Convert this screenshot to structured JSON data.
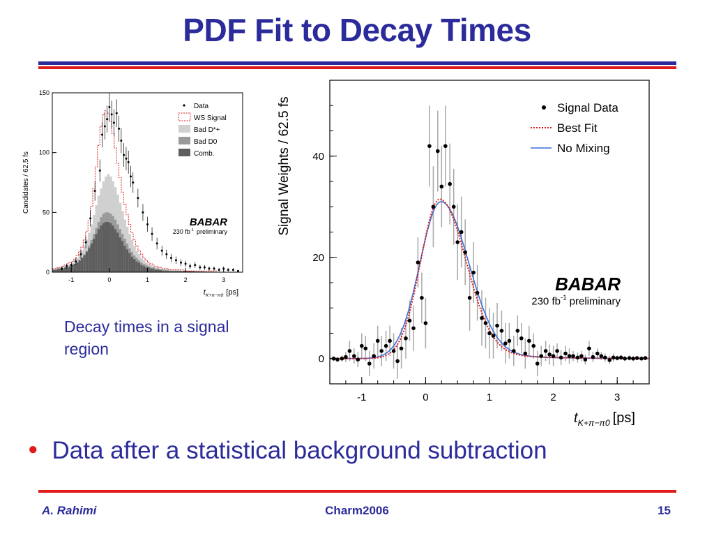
{
  "slide": {
    "title": "PDF Fit to Decay Times",
    "caption": "Decay times in a signal region",
    "bullet": "Data after a statistical background subtraction",
    "footer": {
      "author": "A. Rahimi",
      "event": "Charm2006",
      "page": "15"
    },
    "colors": {
      "title": "#2b2b9b",
      "accent_red": "#e01b1b",
      "accent_blue": "#2b2b9b"
    }
  },
  "chart_data": [
    {
      "type": "bar",
      "ylabel": "Candidates / 62.5 fs",
      "xlabel": "t",
      "xlabel_sub": "K+π−π0",
      "xlabel_unit": "[ps]",
      "xlim": [
        -1.5,
        3.5
      ],
      "ylim": [
        0,
        150
      ],
      "xticks": [
        -1,
        0,
        1,
        2,
        3
      ],
      "yticks": [
        0,
        50,
        100,
        150
      ],
      "logo": "BABAR",
      "lumi": "230 fb",
      "lumi_sup": "-1",
      "status": "preliminary",
      "legend": [
        {
          "label": "Data",
          "marker": "point"
        },
        {
          "label": "WS Signal",
          "marker": "dashed-box",
          "color": "#e01b1b"
        },
        {
          "label": "Bad D*+",
          "marker": "fill",
          "color": "#d0d0d0"
        },
        {
          "label": "Bad D0",
          "marker": "fill",
          "color": "#9a9a9a"
        },
        {
          "label": "Comb.",
          "marker": "fill",
          "color": "#5e5e5e"
        }
      ],
      "bin_width": 0.0625,
      "x_start": -1.5,
      "comb": [
        2,
        2,
        3,
        3,
        3,
        4,
        4,
        5,
        6,
        7,
        8,
        10,
        12,
        14,
        17,
        20,
        24,
        28,
        32,
        36,
        39,
        41,
        42,
        42,
        41,
        39,
        36,
        33,
        29,
        26,
        22,
        19,
        16,
        13,
        11,
        9,
        8,
        6,
        5,
        4,
        4,
        3,
        3,
        2,
        2,
        2,
        1,
        1,
        1,
        1,
        1,
        1,
        1,
        1,
        1,
        1,
        1,
        1,
        1,
        1,
        0,
        0,
        0,
        0,
        0,
        0,
        0,
        0,
        0,
        0,
        0,
        0,
        0,
        0,
        0,
        0,
        0,
        0,
        0,
        0
      ],
      "bad_d0": [
        2,
        2,
        3,
        3,
        3,
        4,
        4,
        5,
        6,
        7,
        8,
        10,
        12,
        15,
        18,
        22,
        27,
        32,
        37,
        42,
        46,
        49,
        50,
        50,
        49,
        47,
        44,
        40,
        36,
        32,
        28,
        24,
        20,
        17,
        14,
        12,
        10,
        8,
        7,
        6,
        5,
        4,
        4,
        3,
        3,
        2,
        2,
        2,
        2,
        1,
        1,
        1,
        1,
        1,
        1,
        1,
        1,
        1,
        1,
        1,
        1,
        1,
        1,
        1,
        0,
        0,
        0,
        0,
        0,
        0,
        0,
        0,
        0,
        0,
        0,
        0,
        0,
        0,
        0,
        0
      ],
      "bad_dstar": [
        3,
        3,
        4,
        4,
        5,
        5,
        6,
        7,
        8,
        10,
        12,
        15,
        18,
        22,
        27,
        33,
        40,
        48,
        56,
        64,
        70,
        76,
        80,
        82,
        80,
        76,
        71,
        65,
        58,
        51,
        44,
        38,
        32,
        27,
        22,
        18,
        15,
        12,
        10,
        8,
        7,
        6,
        5,
        4,
        4,
        3,
        3,
        3,
        2,
        2,
        2,
        2,
        2,
        2,
        1,
        1,
        1,
        1,
        1,
        1,
        1,
        1,
        1,
        1,
        1,
        1,
        1,
        1,
        0,
        0,
        0,
        0,
        0,
        0,
        0,
        0,
        0,
        0,
        0,
        0
      ],
      "ws_signal": [
        3,
        3,
        4,
        4,
        5,
        6,
        7,
        8,
        9,
        11,
        14,
        17,
        21,
        27,
        34,
        43,
        55,
        70,
        88,
        106,
        122,
        132,
        135,
        133,
        126,
        116,
        104,
        91,
        79,
        67,
        57,
        48,
        40,
        33,
        27,
        22,
        18,
        15,
        12,
        10,
        8,
        7,
        6,
        5,
        4,
        4,
        3,
        3,
        3,
        2,
        2,
        2,
        2,
        2,
        2,
        1,
        1,
        1,
        1,
        1,
        1,
        1,
        1,
        1,
        1,
        1,
        1,
        1,
        1,
        0,
        0,
        0,
        0,
        0,
        0,
        0,
        0,
        0,
        0,
        0
      ],
      "data_points": [
        {
          "x": -1.25,
          "y": 3
        },
        {
          "x": -1.12,
          "y": 5
        },
        {
          "x": -1.0,
          "y": 6
        },
        {
          "x": -0.88,
          "y": 9
        },
        {
          "x": -0.75,
          "y": 15
        },
        {
          "x": -0.62,
          "y": 25
        },
        {
          "x": -0.5,
          "y": 45
        },
        {
          "x": -0.38,
          "y": 68
        },
        {
          "x": -0.25,
          "y": 85
        },
        {
          "x": -0.19,
          "y": 115
        },
        {
          "x": -0.12,
          "y": 122
        },
        {
          "x": -0.06,
          "y": 128
        },
        {
          "x": 0.0,
          "y": 138
        },
        {
          "x": 0.06,
          "y": 132
        },
        {
          "x": 0.12,
          "y": 125
        },
        {
          "x": 0.19,
          "y": 133
        },
        {
          "x": 0.25,
          "y": 120
        },
        {
          "x": 0.31,
          "y": 110
        },
        {
          "x": 0.38,
          "y": 98
        },
        {
          "x": 0.44,
          "y": 95
        },
        {
          "x": 0.5,
          "y": 92
        },
        {
          "x": 0.56,
          "y": 80
        },
        {
          "x": 0.62,
          "y": 75
        },
        {
          "x": 0.75,
          "y": 62
        },
        {
          "x": 0.88,
          "y": 50
        },
        {
          "x": 1.0,
          "y": 40
        },
        {
          "x": 1.12,
          "y": 32
        },
        {
          "x": 1.25,
          "y": 24
        },
        {
          "x": 1.38,
          "y": 18
        },
        {
          "x": 1.5,
          "y": 15
        },
        {
          "x": 1.62,
          "y": 12
        },
        {
          "x": 1.75,
          "y": 10
        },
        {
          "x": 1.88,
          "y": 8
        },
        {
          "x": 2.0,
          "y": 7
        },
        {
          "x": 2.12,
          "y": 5
        },
        {
          "x": 2.25,
          "y": 6
        },
        {
          "x": 2.38,
          "y": 4
        },
        {
          "x": 2.5,
          "y": 4
        },
        {
          "x": 2.62,
          "y": 3
        },
        {
          "x": 2.75,
          "y": 3
        },
        {
          "x": 2.88,
          "y": 2
        },
        {
          "x": 3.0,
          "y": 3
        },
        {
          "x": 3.12,
          "y": 2
        },
        {
          "x": 3.25,
          "y": 2
        },
        {
          "x": 3.38,
          "y": 1
        }
      ]
    },
    {
      "type": "scatter",
      "ylabel": "Signal Weights / 62.5 fs",
      "xlabel": "t",
      "xlabel_sub": "K+π−π0",
      "xlabel_unit": "[ps]",
      "xlim": [
        -1.5,
        3.5
      ],
      "ylim": [
        -5,
        55
      ],
      "xticks": [
        -1,
        0,
        1,
        2,
        3
      ],
      "yticks": [
        0,
        20,
        40
      ],
      "logo": "BABAR",
      "lumi": "230 fb",
      "lumi_sup": "-1",
      "status": "preliminary",
      "legend": [
        {
          "label": "Signal Data",
          "marker": "point",
          "color": "#000000"
        },
        {
          "label": "Best Fit",
          "marker": "dotted-line",
          "color": "#e01b1b"
        },
        {
          "label": "No Mixing",
          "marker": "line",
          "color": "#3a6fd8"
        }
      ],
      "data_points": [
        {
          "x": -1.44,
          "y": 0,
          "e": 0.5
        },
        {
          "x": -1.38,
          "y": -0.2,
          "e": 0.5
        },
        {
          "x": -1.31,
          "y": 0,
          "e": 0.6
        },
        {
          "x": -1.25,
          "y": 0.3,
          "e": 1.0
        },
        {
          "x": -1.19,
          "y": 1.5,
          "e": 2.0
        },
        {
          "x": -1.12,
          "y": 0.5,
          "e": 1.5
        },
        {
          "x": -1.06,
          "y": -0.2,
          "e": 1.5
        },
        {
          "x": -1.0,
          "y": 2.5,
          "e": 2.5
        },
        {
          "x": -0.94,
          "y": 2.0,
          "e": 2.5
        },
        {
          "x": -0.88,
          "y": -1.0,
          "e": 2.5
        },
        {
          "x": -0.81,
          "y": 0.5,
          "e": 2.5
        },
        {
          "x": -0.75,
          "y": 3.5,
          "e": 3.0
        },
        {
          "x": -0.69,
          "y": 1.5,
          "e": 3.0
        },
        {
          "x": -0.62,
          "y": 2.5,
          "e": 3.0
        },
        {
          "x": -0.56,
          "y": 3.5,
          "e": 3.0
        },
        {
          "x": -0.5,
          "y": 1.5,
          "e": 3.5
        },
        {
          "x": -0.44,
          "y": -0.5,
          "e": 3.5
        },
        {
          "x": -0.38,
          "y": 2.0,
          "e": 4.0
        },
        {
          "x": -0.31,
          "y": 4.0,
          "e": 4.0
        },
        {
          "x": -0.25,
          "y": 7.5,
          "e": 4.0
        },
        {
          "x": -0.19,
          "y": 6.0,
          "e": 4.5
        },
        {
          "x": -0.12,
          "y": 19.0,
          "e": 5.0
        },
        {
          "x": -0.06,
          "y": 12.0,
          "e": 5.0
        },
        {
          "x": 0.0,
          "y": 7.0,
          "e": 5.0
        },
        {
          "x": 0.06,
          "y": 42.0,
          "e": 8.0
        },
        {
          "x": 0.12,
          "y": 30.0,
          "e": 8.0
        },
        {
          "x": 0.19,
          "y": 41.0,
          "e": 8.0
        },
        {
          "x": 0.25,
          "y": 34.0,
          "e": 8.0
        },
        {
          "x": 0.31,
          "y": 42.0,
          "e": 8.0
        },
        {
          "x": 0.38,
          "y": 34.5,
          "e": 8.0
        },
        {
          "x": 0.44,
          "y": 30.0,
          "e": 7.5
        },
        {
          "x": 0.5,
          "y": 23.0,
          "e": 7.5
        },
        {
          "x": 0.56,
          "y": 25.0,
          "e": 7.0
        },
        {
          "x": 0.62,
          "y": 21.0,
          "e": 6.5
        },
        {
          "x": 0.69,
          "y": 12.0,
          "e": 6.5
        },
        {
          "x": 0.75,
          "y": 17.0,
          "e": 6.0
        },
        {
          "x": 0.81,
          "y": 13.0,
          "e": 5.5
        },
        {
          "x": 0.88,
          "y": 8.0,
          "e": 5.5
        },
        {
          "x": 0.94,
          "y": 7.0,
          "e": 5.0
        },
        {
          "x": 1.0,
          "y": 5.0,
          "e": 5.0
        },
        {
          "x": 1.06,
          "y": 4.5,
          "e": 4.5
        },
        {
          "x": 1.12,
          "y": 6.5,
          "e": 4.5
        },
        {
          "x": 1.19,
          "y": 5.5,
          "e": 4.0
        },
        {
          "x": 1.25,
          "y": 3.0,
          "e": 4.0
        },
        {
          "x": 1.31,
          "y": 3.5,
          "e": 3.5
        },
        {
          "x": 1.38,
          "y": 1.5,
          "e": 3.0
        },
        {
          "x": 1.44,
          "y": 5.5,
          "e": 3.0
        },
        {
          "x": 1.5,
          "y": 4.0,
          "e": 3.0
        },
        {
          "x": 1.56,
          "y": 1.0,
          "e": 3.0
        },
        {
          "x": 1.62,
          "y": 3.5,
          "e": 3.0
        },
        {
          "x": 1.69,
          "y": 2.5,
          "e": 2.5
        },
        {
          "x": 1.75,
          "y": -1.0,
          "e": 2.5
        },
        {
          "x": 1.81,
          "y": 0.5,
          "e": 2.0
        },
        {
          "x": 1.88,
          "y": 1.5,
          "e": 2.0
        },
        {
          "x": 1.94,
          "y": 0.8,
          "e": 2.0
        },
        {
          "x": 2.0,
          "y": 0.5,
          "e": 2.0
        },
        {
          "x": 2.06,
          "y": 1.5,
          "e": 1.5
        },
        {
          "x": 2.12,
          "y": 0.2,
          "e": 1.5
        },
        {
          "x": 2.19,
          "y": 1.0,
          "e": 1.5
        },
        {
          "x": 2.25,
          "y": 0.5,
          "e": 1.5
        },
        {
          "x": 2.31,
          "y": 0.5,
          "e": 1.0
        },
        {
          "x": 2.38,
          "y": 0.2,
          "e": 1.0
        },
        {
          "x": 2.44,
          "y": 0.5,
          "e": 1.0
        },
        {
          "x": 2.5,
          "y": -0.2,
          "e": 1.0
        },
        {
          "x": 2.56,
          "y": 2.0,
          "e": 1.5
        },
        {
          "x": 2.62,
          "y": 0.3,
          "e": 1.0
        },
        {
          "x": 2.69,
          "y": 1.0,
          "e": 1.0
        },
        {
          "x": 2.75,
          "y": 0.5,
          "e": 0.8
        },
        {
          "x": 2.81,
          "y": 0.2,
          "e": 0.8
        },
        {
          "x": 2.88,
          "y": -0.3,
          "e": 0.8
        },
        {
          "x": 2.94,
          "y": 0.2,
          "e": 0.8
        },
        {
          "x": 3.0,
          "y": 0.1,
          "e": 0.5
        },
        {
          "x": 3.06,
          "y": 0.2,
          "e": 0.5
        },
        {
          "x": 3.12,
          "y": 0.0,
          "e": 0.5
        },
        {
          "x": 3.19,
          "y": 0.1,
          "e": 0.5
        },
        {
          "x": 3.25,
          "y": 0.0,
          "e": 0.5
        },
        {
          "x": 3.31,
          "y": 0.1,
          "e": 0.4
        },
        {
          "x": 3.38,
          "y": 0.0,
          "e": 0.4
        },
        {
          "x": 3.44,
          "y": 0.1,
          "e": 0.4
        }
      ],
      "best_fit": {
        "mean": 0.22,
        "sigma_left": 0.3,
        "sigma_right": 0.4,
        "peak": 31.5,
        "tail": 3.2
      },
      "no_mixing": {
        "mean": 0.24,
        "sigma_left": 0.33,
        "sigma_right": 0.42,
        "peak": 31.0,
        "tail": 3.0
      }
    }
  ]
}
